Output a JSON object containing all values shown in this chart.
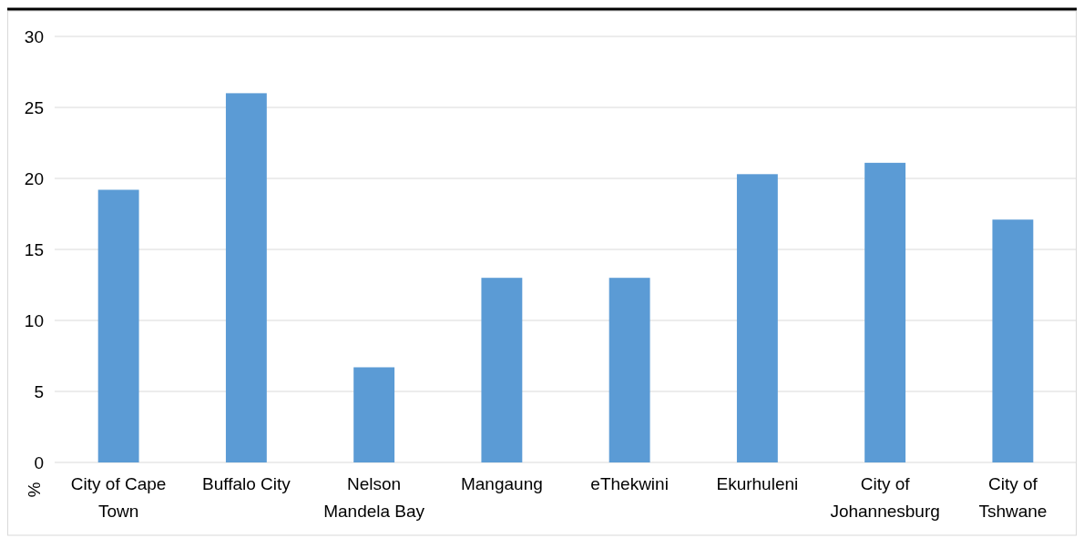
{
  "chart_data": {
    "type": "bar",
    "ylabel": "%",
    "categories": [
      "City of Cape Town",
      "Buffalo City",
      "Nelson Mandela Bay",
      "Mangaung",
      "eThekwini",
      "Ekurhuleni",
      "City of Johannesburg",
      "City of Tshwane"
    ],
    "values": [
      19.2,
      26,
      6.7,
      13,
      13,
      20.3,
      21.1,
      17.1
    ],
    "color": "#5b9bd5",
    "ylim": [
      0,
      30
    ],
    "yticks": [
      0,
      5,
      10,
      15,
      20,
      25,
      30
    ],
    "grid": "y"
  }
}
